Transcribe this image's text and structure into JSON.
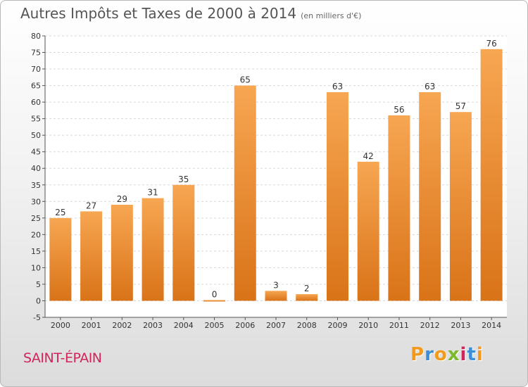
{
  "title": "Autres Impôts et Taxes de 2000 à 2014",
  "subtitle": "(en milliers d'€)",
  "commune": "SAINT-ÉPAIN",
  "logo": {
    "text": "Proxiti",
    "letters": [
      {
        "ch": "P",
        "color": "#f29a1d"
      },
      {
        "ch": "r",
        "color": "#3a8fd6"
      },
      {
        "ch": "o",
        "color": "#f29a1d"
      },
      {
        "ch": "x",
        "color": "#7ab929"
      },
      {
        "ch": "i",
        "color": "#d1245a"
      },
      {
        "ch": "t",
        "color": "#3a8fd6"
      },
      {
        "ch": "i",
        "color": "#f29a1d"
      }
    ]
  },
  "chart_data": {
    "type": "bar",
    "title": "Autres Impôts et Taxes de 2000 à 2014",
    "subtitle": "(en milliers d'€)",
    "categories": [
      "2000",
      "2001",
      "2002",
      "2003",
      "2004",
      "2005",
      "2006",
      "2007",
      "2008",
      "2009",
      "2010",
      "2011",
      "2012",
      "2013",
      "2014"
    ],
    "values": [
      25,
      27,
      29,
      31,
      35,
      0,
      65,
      3,
      2,
      63,
      42,
      56,
      63,
      57,
      76
    ],
    "ylim": [
      -5,
      80
    ],
    "yticks": [
      -5,
      0,
      5,
      10,
      15,
      20,
      25,
      30,
      35,
      40,
      45,
      50,
      55,
      60,
      65,
      70,
      75,
      80
    ],
    "grid": true,
    "bar_color": "#f0922e"
  }
}
